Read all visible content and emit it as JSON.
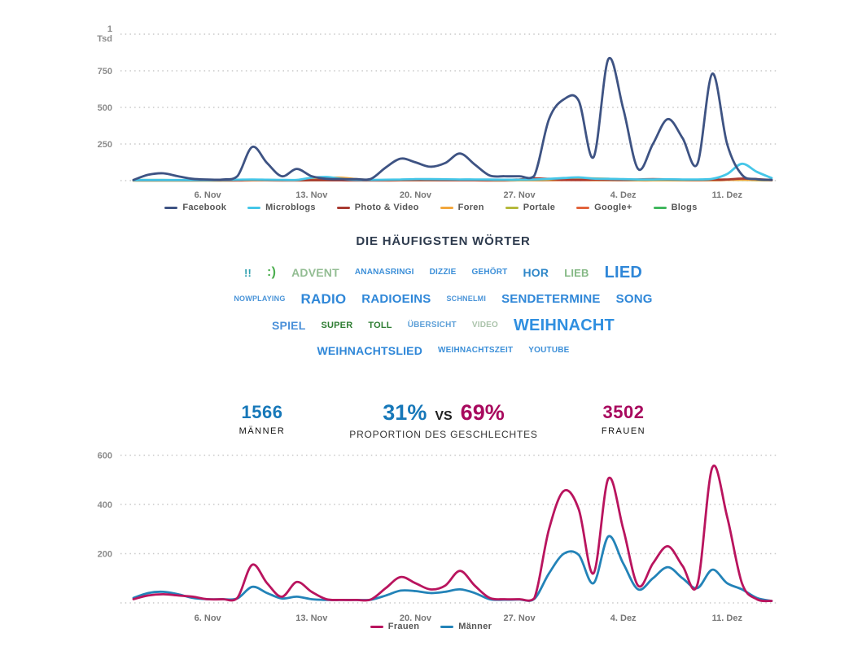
{
  "chart_data": [
    {
      "type": "line",
      "name": "mentions-by-channel",
      "title": "",
      "xlabel": "",
      "ylabel": "Tsd",
      "ylim": [
        0,
        1000
      ],
      "grid": true,
      "legend_position": "bottom",
      "days_total": 44,
      "x_labels": [
        {
          "label": "6. Nov",
          "day": 5
        },
        {
          "label": "13. Nov",
          "day": 12
        },
        {
          "label": "20. Nov",
          "day": 19
        },
        {
          "label": "27. Nov",
          "day": 26
        },
        {
          "label": "4. Dez",
          "day": 33
        },
        {
          "label": "11. Dez",
          "day": 40
        }
      ],
      "yticks": [
        {
          "value": 250,
          "label": "250"
        },
        {
          "value": 500,
          "label": "500"
        },
        {
          "value": 750,
          "label": "750"
        },
        {
          "value": 1000,
          "label": "1\nTsd"
        }
      ],
      "series": [
        {
          "name": "Facebook",
          "color": "#3e5383",
          "values": [
            5,
            40,
            50,
            30,
            12,
            8,
            8,
            30,
            230,
            120,
            30,
            80,
            30,
            12,
            10,
            10,
            12,
            90,
            150,
            125,
            95,
            120,
            185,
            110,
            35,
            30,
            30,
            32,
            420,
            555,
            545,
            160,
            830,
            490,
            80,
            250,
            420,
            290,
            115,
            730,
            250,
            40,
            10,
            5
          ]
        },
        {
          "name": "Microblogs",
          "color": "#45c6e8",
          "values": [
            3,
            4,
            4,
            4,
            4,
            4,
            5,
            6,
            8,
            6,
            5,
            5,
            20,
            25,
            12,
            5,
            5,
            6,
            8,
            10,
            10,
            9,
            8,
            8,
            7,
            6,
            6,
            8,
            12,
            18,
            22,
            14,
            12,
            10,
            8,
            8,
            9,
            8,
            8,
            12,
            45,
            115,
            60,
            18
          ]
        },
        {
          "name": "Photo & Video",
          "color": "#a93b32",
          "values": [
            2,
            2,
            3,
            3,
            2,
            2,
            2,
            3,
            5,
            4,
            3,
            3,
            3,
            3,
            2,
            2,
            2,
            3,
            4,
            4,
            4,
            3,
            3,
            3,
            3,
            4,
            8,
            15,
            12,
            6,
            5,
            8,
            6,
            5,
            8,
            10,
            8,
            6,
            5,
            6,
            8,
            14,
            10,
            4
          ]
        },
        {
          "name": "Foren",
          "color": "#f2a73d",
          "values": [
            2,
            2,
            2,
            2,
            2,
            2,
            2,
            2,
            3,
            3,
            3,
            4,
            8,
            18,
            20,
            10,
            4,
            3,
            3,
            4,
            5,
            5,
            4,
            4,
            4,
            4,
            4,
            5,
            10,
            15,
            18,
            15,
            12,
            8,
            6,
            5,
            5,
            5,
            4,
            4,
            5,
            6,
            5,
            3
          ]
        },
        {
          "name": "Portale",
          "color": "#b5b93b",
          "values": [
            1,
            1,
            1,
            1,
            1,
            1,
            1,
            2,
            3,
            2,
            2,
            2,
            2,
            3,
            3,
            2,
            2,
            2,
            3,
            3,
            3,
            3,
            3,
            3,
            2,
            2,
            3,
            4,
            6,
            8,
            8,
            6,
            5,
            4,
            4,
            3,
            3,
            3,
            3,
            4,
            5,
            6,
            4,
            2
          ]
        },
        {
          "name": "Google+",
          "color": "#e2643c",
          "values": [
            1,
            1,
            1,
            1,
            1,
            1,
            1,
            1,
            2,
            2,
            1,
            1,
            2,
            2,
            2,
            1,
            1,
            1,
            2,
            2,
            2,
            2,
            2,
            2,
            1,
            1,
            2,
            2,
            3,
            4,
            4,
            3,
            3,
            3,
            2,
            2,
            3,
            3,
            2,
            3,
            5,
            8,
            6,
            2
          ]
        },
        {
          "name": "Blogs",
          "color": "#41b75e",
          "values": [
            3,
            4,
            4,
            3,
            3,
            3,
            3,
            3,
            5,
            4,
            3,
            3,
            3,
            3,
            3,
            3,
            3,
            3,
            4,
            4,
            4,
            4,
            4,
            3,
            3,
            3,
            3,
            4,
            5,
            6,
            6,
            5,
            5,
            5,
            4,
            4,
            4,
            4,
            4,
            4,
            5,
            5,
            4,
            3
          ]
        }
      ]
    },
    {
      "type": "line",
      "name": "mentions-by-gender",
      "title": "",
      "xlabel": "",
      "ylabel": "",
      "ylim": [
        0,
        600
      ],
      "grid": true,
      "legend_position": "bottom",
      "days_total": 44,
      "x_labels": [
        {
          "label": "6. Nov",
          "day": 5
        },
        {
          "label": "13. Nov",
          "day": 12
        },
        {
          "label": "20. Nov",
          "day": 19
        },
        {
          "label": "27. Nov",
          "day": 26
        },
        {
          "label": "4. Dez",
          "day": 33
        },
        {
          "label": "11. Dez",
          "day": 40
        }
      ],
      "yticks": [
        {
          "value": 200,
          "label": "200"
        },
        {
          "value": 400,
          "label": "400"
        },
        {
          "value": 600,
          "label": "600"
        }
      ],
      "series": [
        {
          "name": "Frauen",
          "color": "#b9145e",
          "values": [
            15,
            30,
            35,
            30,
            25,
            15,
            15,
            20,
            155,
            80,
            25,
            85,
            45,
            15,
            12,
            12,
            14,
            60,
            105,
            80,
            55,
            70,
            130,
            70,
            20,
            15,
            15,
            18,
            300,
            455,
            380,
            120,
            505,
            300,
            70,
            160,
            230,
            150,
            75,
            550,
            350,
            80,
            15,
            8
          ]
        },
        {
          "name": "Männer",
          "color": "#2383b8",
          "values": [
            20,
            40,
            45,
            35,
            20,
            15,
            15,
            18,
            65,
            40,
            18,
            25,
            15,
            12,
            12,
            12,
            13,
            30,
            50,
            48,
            40,
            45,
            55,
            40,
            15,
            13,
            14,
            16,
            120,
            200,
            195,
            80,
            270,
            160,
            55,
            100,
            145,
            100,
            60,
            135,
            80,
            55,
            20,
            8
          ]
        }
      ]
    }
  ],
  "word_cloud": {
    "title": "DIE HÄUFIGSTEN WÖRTER",
    "rows": [
      [
        {
          "t": "!!",
          "s": 13,
          "c": "#2e9fae"
        },
        {
          "t": ":)",
          "s": 16,
          "c": "#4cae4f"
        },
        {
          "t": "ADVENT",
          "s": 14,
          "c": "#93bd93"
        },
        {
          "t": "ANANASRINGI",
          "s": 10,
          "c": "#3c8fd8"
        },
        {
          "t": "DIZZIE",
          "s": 10,
          "c": "#3c8fd8"
        },
        {
          "t": "GEHÖRT",
          "s": 10,
          "c": "#3c8fd8"
        },
        {
          "t": "HOR",
          "s": 14,
          "c": "#2f87c8"
        },
        {
          "t": "LIEB",
          "s": 13,
          "c": "#84b884"
        },
        {
          "t": "LIED",
          "s": 20,
          "c": "#2f87d8"
        }
      ],
      [
        {
          "t": "NOWPLAYING",
          "s": 9,
          "c": "#4a94d8"
        },
        {
          "t": "RADIO",
          "s": 17,
          "c": "#2f87d8"
        },
        {
          "t": "RADIOEINS",
          "s": 15,
          "c": "#2f87d8"
        },
        {
          "t": "SCHNELMI",
          "s": 9,
          "c": "#4a94d8"
        },
        {
          "t": "SENDETERMINE",
          "s": 15,
          "c": "#2f87d8"
        },
        {
          "t": "SONG",
          "s": 15,
          "c": "#2f87d8"
        }
      ],
      [
        {
          "t": "SPIEL",
          "s": 14,
          "c": "#4a90d9"
        },
        {
          "t": "SUPER",
          "s": 11,
          "c": "#2e7d32"
        },
        {
          "t": "TOLL",
          "s": 11,
          "c": "#2e7d32"
        },
        {
          "t": "ÜBERSICHT",
          "s": 10,
          "c": "#5ea0d8"
        },
        {
          "t": "VIDEO",
          "s": 10,
          "c": "#abc3ab"
        },
        {
          "t": "WEIHNACHT",
          "s": 20,
          "c": "#2f8fe0"
        }
      ],
      [
        {
          "t": "WEIHNACHTSLIED",
          "s": 14,
          "c": "#2f87d8"
        },
        {
          "t": "WEIHNACHTSZEIT",
          "s": 10,
          "c": "#3c8fd8"
        },
        {
          "t": "YOUTUBE",
          "s": 10,
          "c": "#3c8fd8"
        }
      ]
    ]
  },
  "gender": {
    "males": {
      "value": "1566",
      "label": "MÄNNER",
      "color": "#1778b9"
    },
    "females": {
      "value": "3502",
      "label": "FRAUEN",
      "color": "#a8095e"
    },
    "male_pct": "31%",
    "vs": "VS",
    "female_pct": "69%",
    "caption": "PROPORTION DES GESCHLECHTES"
  }
}
